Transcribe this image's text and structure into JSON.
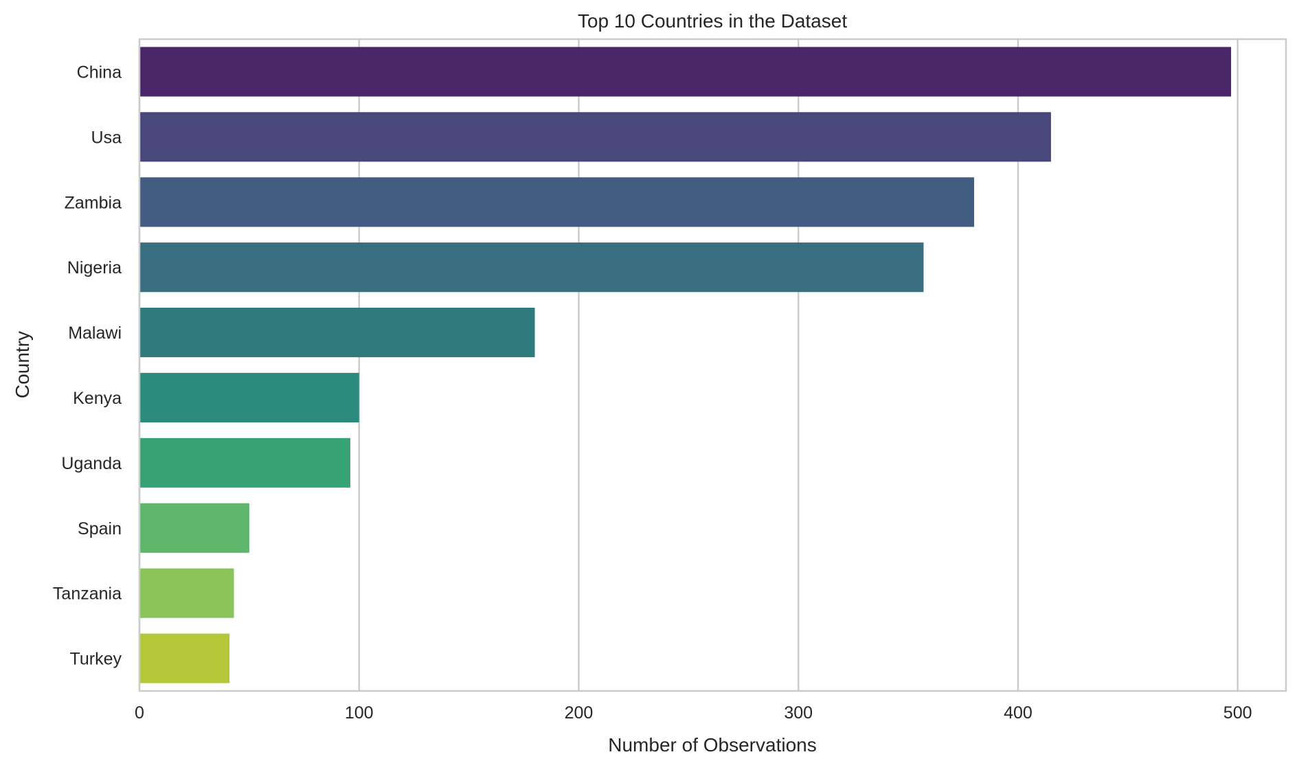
{
  "chart_data": {
    "type": "bar",
    "orientation": "horizontal",
    "title": "Top 10 Countries in the Dataset",
    "xlabel": "Number of Observations",
    "ylabel": "Country",
    "xlim": [
      0,
      522
    ],
    "xticks": [
      0,
      100,
      200,
      300,
      400,
      500
    ],
    "grid": "vertical",
    "legend": "none",
    "categories": [
      "China",
      "Usa",
      "Zambia",
      "Nigeria",
      "Malawi",
      "Kenya",
      "Uganda",
      "Spain",
      "Tanzania",
      "Turkey"
    ],
    "values": [
      497,
      415,
      380,
      357,
      180,
      100,
      96,
      50,
      43,
      41
    ],
    "colors": [
      "#482667",
      "#48477b",
      "#435c82",
      "#396d80",
      "#307b7e",
      "#2b8c7d",
      "#39a274",
      "#5fb56c",
      "#8bc45a",
      "#b2c839"
    ]
  }
}
